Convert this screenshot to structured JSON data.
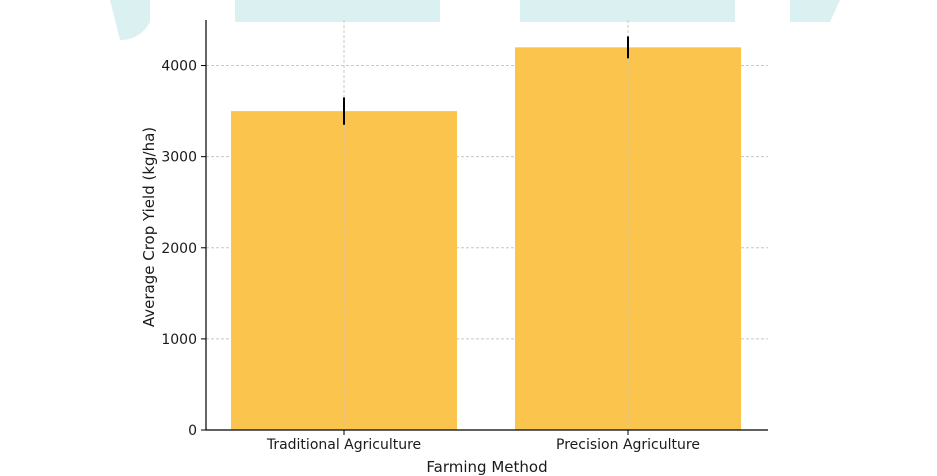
{
  "colors": {
    "bar": "#fbc44d",
    "error_bar": "#000000",
    "grid": "#c8c8c8",
    "axis": "#000000",
    "decor": "#d6eef0"
  },
  "chart_data": {
    "type": "bar",
    "categories": [
      "Traditional Agriculture",
      "Precision Agriculture"
    ],
    "values": [
      3500,
      4200
    ],
    "errors": [
      150,
      120
    ],
    "title": "",
    "xlabel": "Farming Method",
    "ylabel": "Average Crop Yield (kg/ha)",
    "ylim": [
      0,
      4500
    ],
    "yticks": [
      0,
      1000,
      2000,
      3000,
      4000
    ],
    "grid": true,
    "legend": "none"
  }
}
